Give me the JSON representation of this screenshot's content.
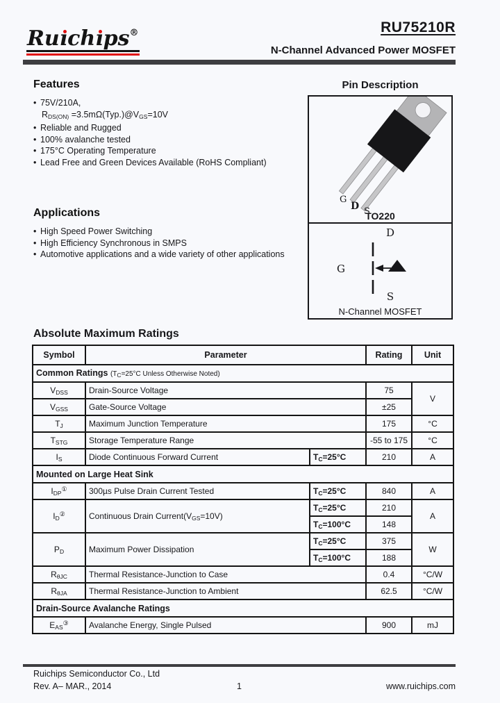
{
  "header": {
    "logo": {
      "p1": "Ru",
      "p2": "ı",
      "p3": "ch",
      "p4": "ı",
      "p5": "ps",
      "reg": "®"
    },
    "part_number": "RU75210R",
    "subtitle": "N-Channel Advanced Power MOSFET"
  },
  "features": {
    "title": "Features",
    "items": [
      {
        "bullet": "•",
        "text": "75V/210A,"
      },
      {
        "bullet": "",
        "text": "R~DS(ON)~ =3.5mΩ(Typ.)@V~GS~=10V"
      },
      {
        "bullet": "•",
        "text": "Reliable and Rugged"
      },
      {
        "bullet": "•",
        "text": "100% avalanche tested"
      },
      {
        "bullet": "•",
        "text": "175°C Operating Temperature"
      },
      {
        "bullet": "•",
        "text": "Lead Free and Green Devices Available (RoHS Compliant)"
      }
    ]
  },
  "applications": {
    "title": "Applications",
    "items": [
      {
        "bullet": "•",
        "text": "High Speed Power Switching"
      },
      {
        "bullet": "•",
        "text": "High Efficiency Synchronous in SMPS"
      },
      {
        "bullet": "•",
        "text": "Automotive applications and a wide variety of other applications"
      }
    ]
  },
  "pin_description": {
    "title": "Pin Description",
    "package_name": "TO220",
    "pins": {
      "gate": "G",
      "drain": "D",
      "source": "S"
    },
    "symbol": {
      "drain": "D",
      "gate": "G",
      "source": "S",
      "caption": "N-Channel  MOSFET"
    }
  },
  "ratings": {
    "title": "Absolute Maximum Ratings",
    "columns": {
      "symbol": "Symbol",
      "parameter": "Parameter",
      "rating": "Rating",
      "unit": "Unit"
    },
    "rows": [
      {
        "label": "Common Ratings",
        "note": "(T~C~=25°C Unless Otherwise Noted)"
      },
      {
        "symbol": "V~DSS~",
        "param": "Drain-Source Voltage",
        "rating": "75",
        "unit": "V"
      },
      {
        "symbol": "V~GSS~",
        "param": "Gate-Source Voltage",
        "rating": "±25"
      },
      {
        "symbol": "T~J~",
        "param": "Maximum Junction Temperature",
        "rating": "175",
        "unit": "°C"
      },
      {
        "symbol": "T~STG~",
        "param": "Storage Temperature Range",
        "rating": "-55 to 175",
        "unit": "°C"
      },
      {
        "symbol": "I~S~",
        "param": "Diode Continuous Forward Current",
        "cond": "T~C~=25°C",
        "rating": "210",
        "unit": "A"
      },
      {
        "label": "Mounted on Large Heat Sink",
        "note": ""
      },
      {
        "symbol": "I~DP~^①^",
        "param": "300µs Pulse Drain Current Tested",
        "cond": "T~C~=25°C",
        "rating": "840",
        "unit": "A"
      },
      {
        "symbol": "I~D~^②^",
        "param": "Continuous Drain Current(V~GS~=10V)",
        "cond1": "T~C~=25°C",
        "rating1": "210",
        "cond2": "T~C~=100°C",
        "rating2": "148",
        "unit": "A"
      },
      {
        "symbol": "P~D~",
        "param": "Maximum Power Dissipation",
        "cond1": "T~C~=25°C",
        "rating1": "375",
        "cond2": "T~C~=100°C",
        "rating2": "188",
        "unit": "W"
      },
      {
        "symbol": "R~θJC~",
        "param": "Thermal Resistance-Junction to Case",
        "rating": "0.4",
        "unit": "°C/W"
      },
      {
        "symbol": "R~θJA~",
        "param": "Thermal Resistance-Junction to Ambient",
        "rating": "62.5",
        "unit": "°C/W"
      },
      {
        "label": "Drain-Source Avalanche Ratings",
        "note": ""
      },
      {
        "symbol": "E~AS~^③^",
        "param": "Avalanche Energy, Single Pulsed",
        "rating": "900",
        "unit": "mJ"
      }
    ]
  },
  "footer": {
    "company": "Ruichips Semiconductor Co., Ltd",
    "revision": "Rev. A– MAR., 2014",
    "page_number": "1",
    "website": "www.ruichips.com"
  }
}
